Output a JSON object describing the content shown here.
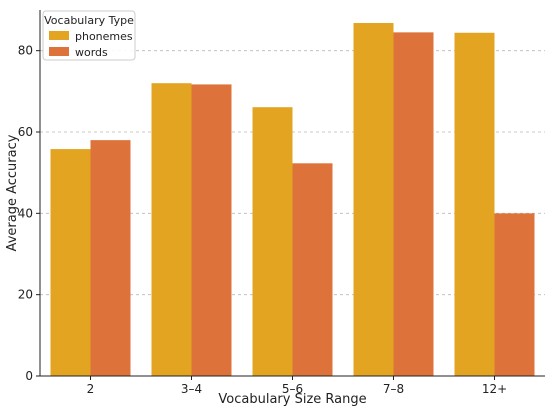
{
  "chart_data": {
    "type": "bar",
    "title": "",
    "xlabel": "Vocabulary Size Range",
    "ylabel": "Average Accuracy",
    "categories": [
      "2",
      "3–4",
      "5–6",
      "7–8",
      "12+"
    ],
    "series": [
      {
        "name": "phonemes",
        "color": "#E3A521",
        "values": [
          55.8,
          72.0,
          66.1,
          86.8,
          84.4
        ]
      },
      {
        "name": "words",
        "color": "#DD733A",
        "values": [
          58.0,
          71.7,
          52.3,
          84.5,
          40.0
        ]
      }
    ],
    "ylim": [
      0,
      90
    ],
    "yticks": [
      "0",
      "20",
      "40",
      "60",
      "80"
    ],
    "grid": "y-dashed",
    "legend": {
      "title": "Vocabulary Type",
      "placement": "top-left"
    }
  }
}
